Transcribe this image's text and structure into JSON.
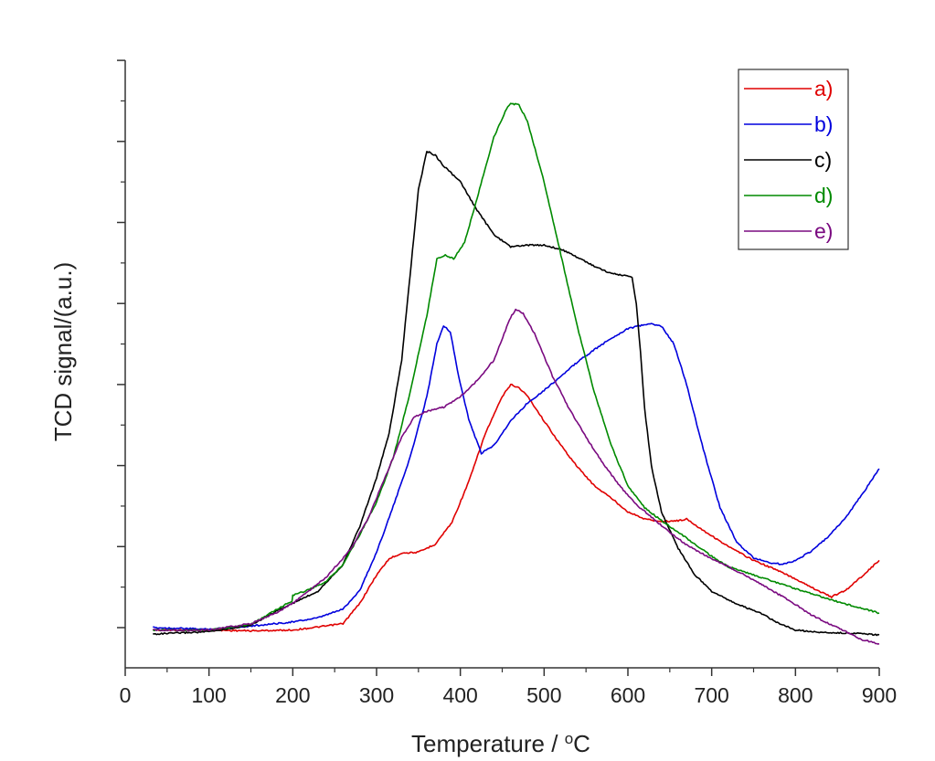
{
  "chart_data": {
    "type": "line",
    "title": "",
    "xlabel": "Temperature / °C",
    "xlabel_main": "Temperature / ",
    "xlabel_sup": "o",
    "xlabel_unit": "C",
    "ylabel": "TCD signal/(a.u.)",
    "xlim": [
      0,
      900
    ],
    "ylim": [
      -5,
      70
    ],
    "xticks": [
      0,
      100,
      200,
      300,
      400,
      500,
      600,
      700,
      800,
      900
    ],
    "xtick_labels": [
      "0",
      "100",
      "200",
      "300",
      "400",
      "500",
      "600",
      "700",
      "800",
      "900"
    ],
    "yticks": [
      0,
      10,
      20,
      30,
      40,
      50,
      60,
      70
    ],
    "ytick_labels_shown": false,
    "grid": false,
    "legend_position": "top-right",
    "series": [
      {
        "name": "a)",
        "color": "#e00000",
        "points": [
          [
            33,
            -0.3
          ],
          [
            100,
            -0.3
          ],
          [
            150,
            -0.4
          ],
          [
            200,
            -0.3
          ],
          [
            240,
            0.2
          ],
          [
            260,
            0.5
          ],
          [
            280,
            3
          ],
          [
            300,
            6.5
          ],
          [
            315,
            8.5
          ],
          [
            330,
            9.2
          ],
          [
            350,
            9.3
          ],
          [
            370,
            10.3
          ],
          [
            390,
            13
          ],
          [
            410,
            18
          ],
          [
            430,
            24
          ],
          [
            450,
            28.5
          ],
          [
            460,
            30
          ],
          [
            470,
            29.6
          ],
          [
            480,
            28.6
          ],
          [
            500,
            25.5
          ],
          [
            520,
            22.5
          ],
          [
            540,
            19.8
          ],
          [
            560,
            17.5
          ],
          [
            580,
            16
          ],
          [
            600,
            14.3
          ],
          [
            620,
            13.4
          ],
          [
            640,
            13.1
          ],
          [
            660,
            13.2
          ],
          [
            670,
            13.4
          ],
          [
            690,
            12
          ],
          [
            720,
            10
          ],
          [
            750,
            8.3
          ],
          [
            780,
            7
          ],
          [
            810,
            5.5
          ],
          [
            830,
            4.4
          ],
          [
            843,
            3.8
          ],
          [
            860,
            4.6
          ],
          [
            880,
            6.4
          ],
          [
            900,
            8.3
          ]
        ]
      },
      {
        "name": "b)",
        "color": "#0000dd",
        "points": [
          [
            33,
            0
          ],
          [
            100,
            -0.2
          ],
          [
            150,
            0.2
          ],
          [
            200,
            0.7
          ],
          [
            230,
            1.2
          ],
          [
            260,
            2.3
          ],
          [
            280,
            4.6
          ],
          [
            300,
            9.3
          ],
          [
            320,
            15
          ],
          [
            340,
            21
          ],
          [
            360,
            28.5
          ],
          [
            372,
            35
          ],
          [
            380,
            37.3
          ],
          [
            388,
            36.5
          ],
          [
            398,
            31
          ],
          [
            410,
            25.7
          ],
          [
            425,
            21.5
          ],
          [
            440,
            22.5
          ],
          [
            460,
            25.5
          ],
          [
            480,
            27.7
          ],
          [
            500,
            29.3
          ],
          [
            520,
            31
          ],
          [
            540,
            32.8
          ],
          [
            560,
            34.3
          ],
          [
            580,
            35.7
          ],
          [
            600,
            36.9
          ],
          [
            625,
            37.5
          ],
          [
            640,
            37.2
          ],
          [
            655,
            35
          ],
          [
            670,
            30
          ],
          [
            690,
            22
          ],
          [
            710,
            14.8
          ],
          [
            730,
            10.5
          ],
          [
            750,
            8.6
          ],
          [
            770,
            8
          ],
          [
            785,
            7.8
          ],
          [
            800,
            8.3
          ],
          [
            820,
            9.5
          ],
          [
            840,
            11.3
          ],
          [
            860,
            13.6
          ],
          [
            880,
            16.5
          ],
          [
            900,
            19.6
          ]
        ]
      },
      {
        "name": "c)",
        "color": "#000000",
        "points": [
          [
            33,
            -0.8
          ],
          [
            100,
            -0.5
          ],
          [
            150,
            0.3
          ],
          [
            180,
            2
          ],
          [
            200,
            3
          ],
          [
            230,
            4.5
          ],
          [
            260,
            7.8
          ],
          [
            280,
            12.5
          ],
          [
            300,
            18.5
          ],
          [
            315,
            24
          ],
          [
            330,
            33
          ],
          [
            340,
            43.5
          ],
          [
            350,
            54
          ],
          [
            360,
            58.8
          ],
          [
            370,
            58.3
          ],
          [
            380,
            57
          ],
          [
            400,
            55
          ],
          [
            420,
            51.5
          ],
          [
            440,
            48.5
          ],
          [
            460,
            47
          ],
          [
            480,
            47.2
          ],
          [
            500,
            47.2
          ],
          [
            520,
            46.7
          ],
          [
            540,
            45.7
          ],
          [
            560,
            44.6
          ],
          [
            580,
            43.7
          ],
          [
            605,
            43.3
          ],
          [
            610,
            40
          ],
          [
            615,
            34
          ],
          [
            620,
            27
          ],
          [
            628,
            20
          ],
          [
            640,
            14.3
          ],
          [
            660,
            9.8
          ],
          [
            680,
            6.5
          ],
          [
            700,
            4.5
          ],
          [
            720,
            3.4
          ],
          [
            740,
            2.5
          ],
          [
            760,
            1.7
          ],
          [
            780,
            0.5
          ],
          [
            800,
            -0.3
          ],
          [
            830,
            -0.6
          ],
          [
            870,
            -0.7
          ],
          [
            900,
            -0.9
          ]
        ]
      },
      {
        "name": "d)",
        "color": "#008a00",
        "points": [
          [
            33,
            -0.3
          ],
          [
            100,
            -0.3
          ],
          [
            150,
            0.4
          ],
          [
            199,
            3.3
          ],
          [
            200,
            4
          ],
          [
            220,
            4.7
          ],
          [
            240,
            5.7
          ],
          [
            260,
            7.8
          ],
          [
            280,
            11.5
          ],
          [
            300,
            15.5
          ],
          [
            320,
            21
          ],
          [
            340,
            29
          ],
          [
            360,
            38.5
          ],
          [
            372,
            45.5
          ],
          [
            382,
            46
          ],
          [
            392,
            45.5
          ],
          [
            405,
            47.5
          ],
          [
            420,
            53
          ],
          [
            440,
            60.5
          ],
          [
            455,
            64
          ],
          [
            460,
            64.7
          ],
          [
            470,
            64.5
          ],
          [
            480,
            62.5
          ],
          [
            500,
            55
          ],
          [
            520,
            46
          ],
          [
            540,
            37
          ],
          [
            560,
            29
          ],
          [
            580,
            22.5
          ],
          [
            600,
            17.5
          ],
          [
            620,
            14.8
          ],
          [
            640,
            13.2
          ],
          [
            660,
            11.8
          ],
          [
            680,
            10.3
          ],
          [
            700,
            8.8
          ],
          [
            720,
            7.5
          ],
          [
            750,
            6.5
          ],
          [
            800,
            4.8
          ],
          [
            850,
            3.2
          ],
          [
            900,
            1.8
          ]
        ]
      },
      {
        "name": "e)",
        "color": "#7a0a80",
        "points": [
          [
            33,
            -0.3
          ],
          [
            100,
            -0.3
          ],
          [
            150,
            0.5
          ],
          [
            180,
            1.8
          ],
          [
            200,
            3
          ],
          [
            240,
            6.2
          ],
          [
            270,
            9.8
          ],
          [
            290,
            13.5
          ],
          [
            310,
            18.5
          ],
          [
            330,
            23.5
          ],
          [
            345,
            26
          ],
          [
            360,
            26.7
          ],
          [
            380,
            27.2
          ],
          [
            400,
            28.5
          ],
          [
            420,
            30.5
          ],
          [
            440,
            33
          ],
          [
            460,
            38.3
          ],
          [
            466,
            39.2
          ],
          [
            475,
            38.8
          ],
          [
            490,
            36
          ],
          [
            510,
            31
          ],
          [
            530,
            27
          ],
          [
            550,
            23.5
          ],
          [
            570,
            20.3
          ],
          [
            590,
            17.5
          ],
          [
            610,
            15.2
          ],
          [
            640,
            12.6
          ],
          [
            670,
            10.2
          ],
          [
            700,
            8.5
          ],
          [
            730,
            7
          ],
          [
            760,
            5.3
          ],
          [
            790,
            3.5
          ],
          [
            820,
            1.5
          ],
          [
            850,
            0
          ],
          [
            880,
            -1.5
          ],
          [
            900,
            -2
          ]
        ]
      }
    ]
  }
}
